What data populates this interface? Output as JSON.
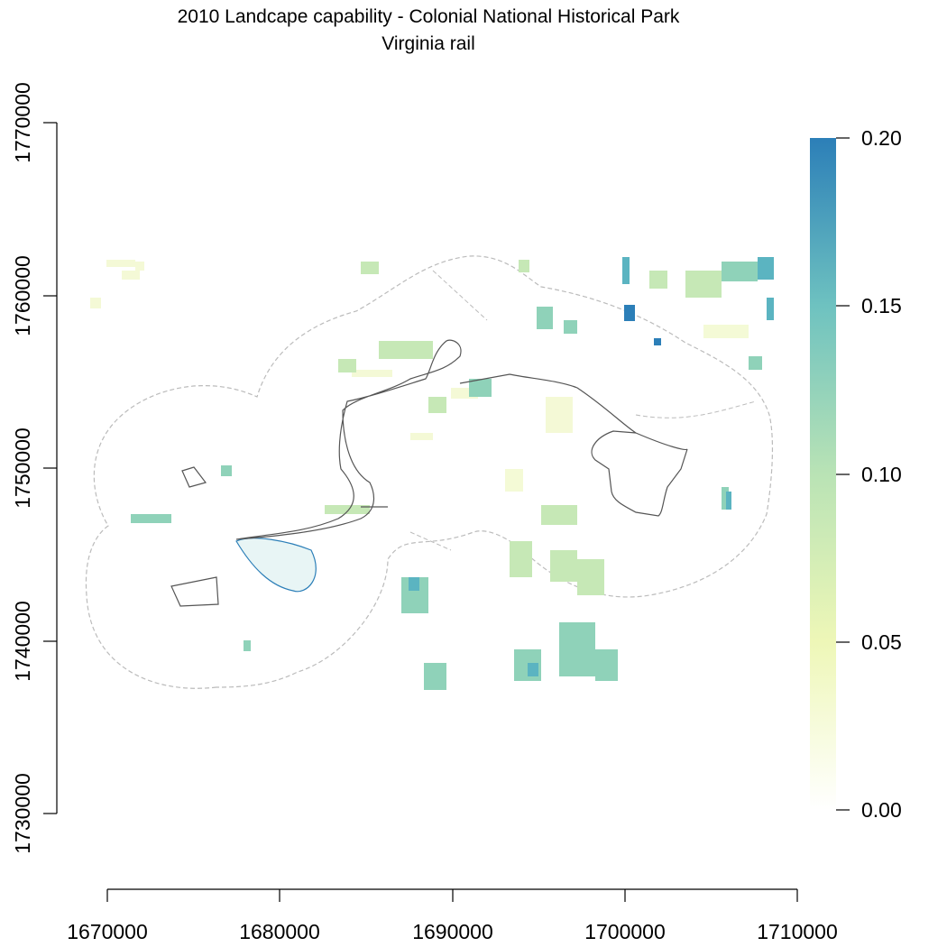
{
  "title": "2010 Landcape capability - Colonial National Historical Park",
  "subtitle": "Virginia rail",
  "x_axis": {
    "ticks": [
      "1670000",
      "1680000",
      "1690000",
      "1700000",
      "1710000"
    ],
    "range": [
      1670000,
      1710000
    ]
  },
  "y_axis": {
    "ticks": [
      "1730000",
      "1740000",
      "1750000",
      "1760000",
      "1770000"
    ],
    "range": [
      1730000,
      1770000
    ]
  },
  "legend": {
    "labels": [
      "0.00",
      "0.05",
      "0.10",
      "0.15",
      "0.20"
    ],
    "values": [
      0,
      0.05,
      0.1,
      0.15,
      0.2
    ],
    "colors": [
      "#ffffff",
      "#eef7b7",
      "#7fcdbb",
      "#41a2c0",
      "#2c7fb8"
    ]
  },
  "colors": {
    "park_boundary": "#555555",
    "buffer_outline": "#bbbbbb"
  }
}
